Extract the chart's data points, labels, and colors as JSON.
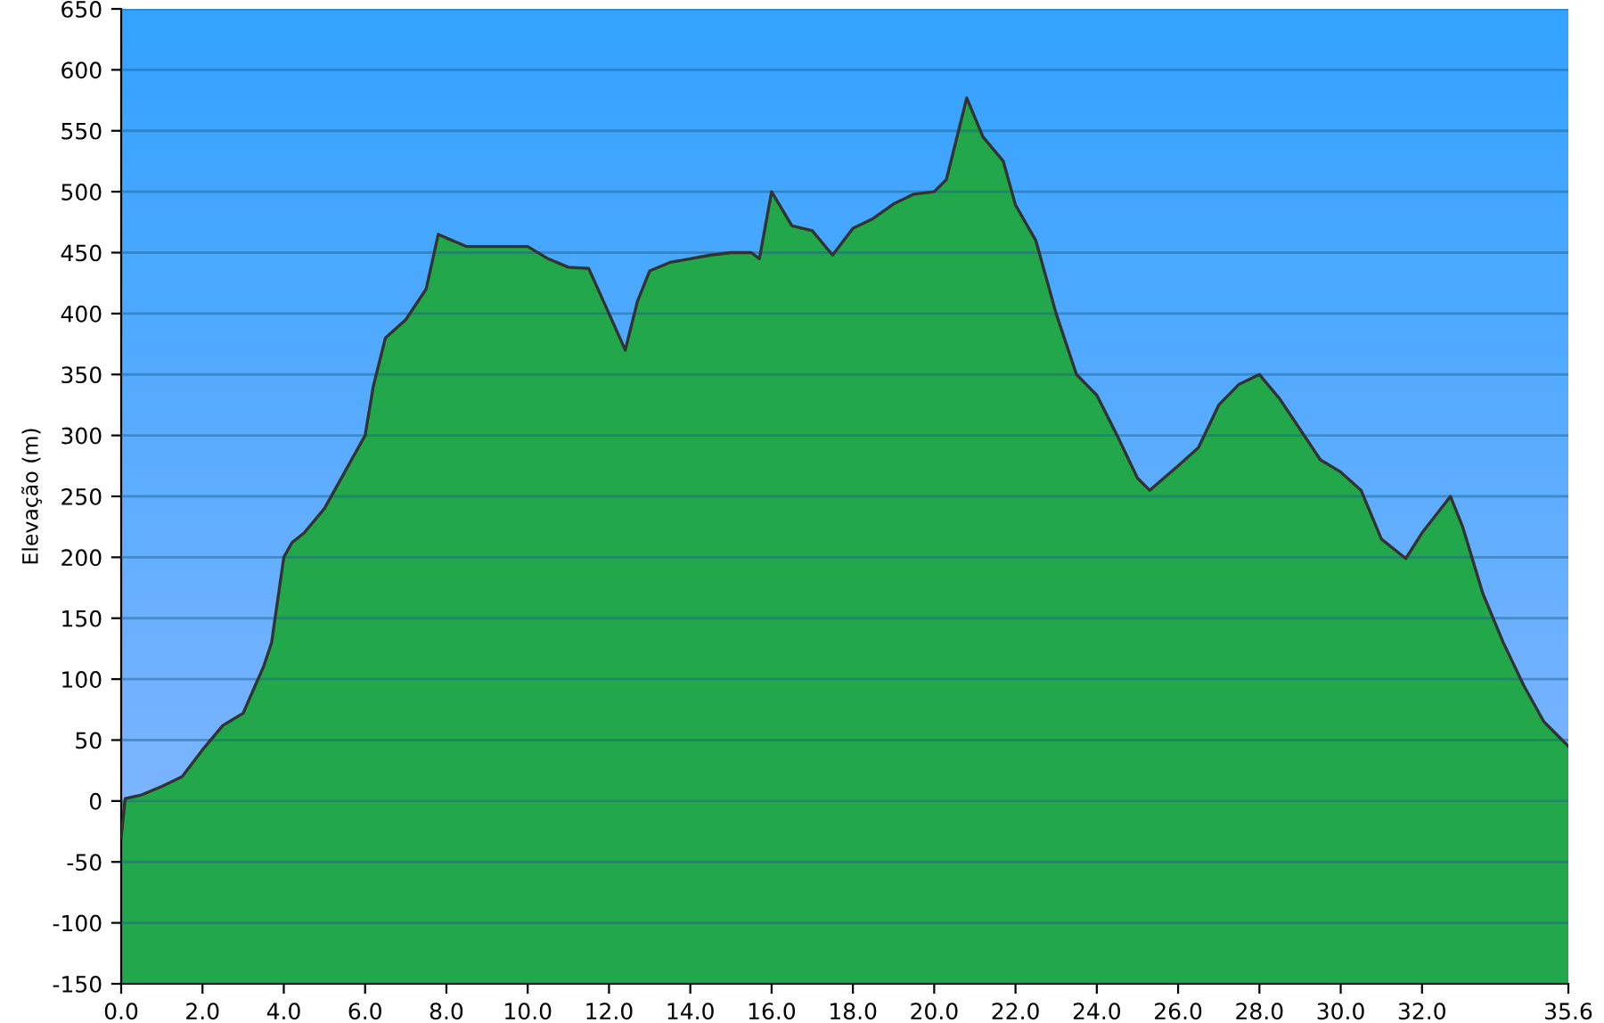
{
  "chart_data": {
    "type": "area",
    "ylabel": "Elevação (m)",
    "x": [
      0.0,
      0.1,
      0.5,
      1.0,
      1.5,
      2.0,
      2.5,
      3.0,
      3.3,
      3.5,
      3.7,
      4.0,
      4.2,
      4.5,
      5.0,
      5.5,
      6.0,
      6.2,
      6.5,
      7.0,
      7.5,
      7.8,
      8.0,
      8.5,
      9.0,
      10.0,
      10.5,
      11.0,
      11.5,
      12.0,
      12.4,
      12.7,
      13.0,
      13.5,
      14.0,
      14.5,
      15.0,
      15.5,
      15.7,
      16.0,
      16.5,
      17.0,
      17.5,
      18.0,
      18.5,
      19.0,
      19.5,
      20.0,
      20.3,
      20.8,
      21.2,
      21.7,
      22.0,
      22.5,
      23.0,
      23.5,
      24.0,
      24.5,
      25.0,
      25.3,
      26.0,
      26.5,
      27.0,
      27.5,
      28.0,
      28.5,
      29.0,
      29.5,
      30.0,
      30.5,
      31.0,
      31.6,
      32.0,
      32.7,
      33.0,
      33.5,
      34.0,
      34.5,
      35.0,
      35.6
    ],
    "series": [
      {
        "color": "#22a84a",
        "values": [
          -30,
          2,
          5,
          12,
          20,
          42,
          62,
          72,
          95,
          110,
          130,
          200,
          212,
          220,
          240,
          270,
          300,
          340,
          380,
          395,
          420,
          465,
          462,
          455,
          455,
          455,
          445,
          438,
          437,
          400,
          370,
          410,
          435,
          442,
          445,
          448,
          450,
          450,
          445,
          500,
          472,
          468,
          448,
          470,
          478,
          490,
          498,
          500,
          510,
          577,
          545,
          525,
          489,
          460,
          400,
          350,
          333,
          300,
          265,
          255,
          275,
          290,
          325,
          342,
          350,
          330,
          305,
          280,
          270,
          255,
          215,
          199,
          220,
          250,
          225,
          170,
          130,
          95,
          65,
          45
        ]
      }
    ],
    "xlim": [
      0,
      35.6
    ],
    "ylim": [
      -150,
      650
    ],
    "xticks": [
      {
        "value": 0,
        "label": "0.0"
      },
      {
        "value": 2,
        "label": "2.0"
      },
      {
        "value": 4,
        "label": "4.0"
      },
      {
        "value": 6,
        "label": "6.0"
      },
      {
        "value": 8,
        "label": "8.0"
      },
      {
        "value": 10,
        "label": "10.0"
      },
      {
        "value": 12,
        "label": "12.0"
      },
      {
        "value": 14,
        "label": "14.0"
      },
      {
        "value": 16,
        "label": "16.0"
      },
      {
        "value": 18,
        "label": "18.0"
      },
      {
        "value": 20,
        "label": "20.0"
      },
      {
        "value": 22,
        "label": "22.0"
      },
      {
        "value": 24,
        "label": "24.0"
      },
      {
        "value": 26,
        "label": "26.0"
      },
      {
        "value": 28,
        "label": "28.0"
      },
      {
        "value": 30,
        "label": "30.0"
      },
      {
        "value": 32,
        "label": "32.0"
      },
      35.6
    ],
    "yticks": [
      -150,
      -100,
      -50,
      0,
      50,
      100,
      150,
      200,
      250,
      300,
      350,
      400,
      450,
      500,
      550,
      600,
      650
    ],
    "bands": [
      {
        "axis": "y",
        "from": -150,
        "to": 0,
        "color": "#22a84a"
      }
    ],
    "grid": "y"
  }
}
